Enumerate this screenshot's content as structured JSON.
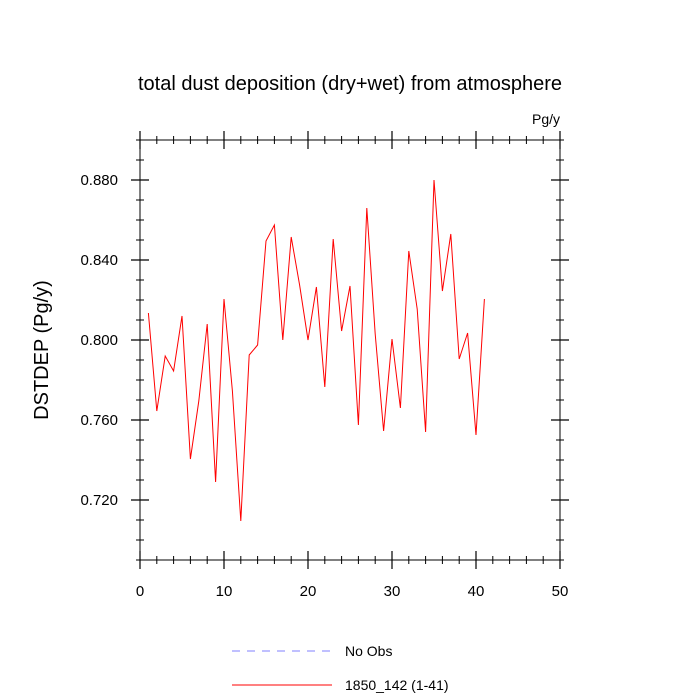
{
  "chart_data": {
    "type": "line",
    "title": "total dust deposition (dry+wet) from atmosphere",
    "units": "Pg/y",
    "ylabel": "DSTDEP  (Pg/y)",
    "xlabel": "",
    "xlim": [
      0,
      50
    ],
    "ylim": [
      0.69,
      0.9
    ],
    "xticks": [
      0,
      10,
      20,
      30,
      40,
      50
    ],
    "xtick_labels": [
      "0",
      "10",
      "20",
      "30",
      "40",
      "50"
    ],
    "yticks": [
      0.72,
      0.76,
      0.8,
      0.84,
      0.88
    ],
    "ytick_labels": [
      "0.720",
      "0.760",
      "0.800",
      "0.840",
      "0.880"
    ],
    "grid": false,
    "legend_position": "bottom",
    "series": [
      {
        "name": "No Obs",
        "color": "#8080ff",
        "style": "dashed",
        "x": [],
        "values": []
      },
      {
        "name": "1850_142 (1-41)",
        "color": "#ff0000",
        "style": "solid",
        "x": [
          1,
          2,
          3,
          4,
          5,
          6,
          7,
          8,
          9,
          10,
          11,
          12,
          13,
          14,
          15,
          16,
          17,
          18,
          19,
          20,
          21,
          22,
          23,
          24,
          25,
          26,
          27,
          28,
          29,
          30,
          31,
          32,
          33,
          34,
          35,
          36,
          37,
          38,
          39,
          40,
          41
        ],
        "values": [
          0.8135,
          0.7645,
          0.792,
          0.7845,
          0.812,
          0.7405,
          0.7695,
          0.808,
          0.729,
          0.8205,
          0.7745,
          0.7095,
          0.7925,
          0.7975,
          0.8495,
          0.8575,
          0.8,
          0.8515,
          0.8275,
          0.8,
          0.8265,
          0.7765,
          0.8505,
          0.8045,
          0.827,
          0.7575,
          0.866,
          0.803,
          0.7545,
          0.8005,
          0.766,
          0.8445,
          0.8155,
          0.754,
          0.88,
          0.8245,
          0.853,
          0.7905,
          0.8035,
          0.7525,
          0.8205
        ]
      }
    ]
  }
}
